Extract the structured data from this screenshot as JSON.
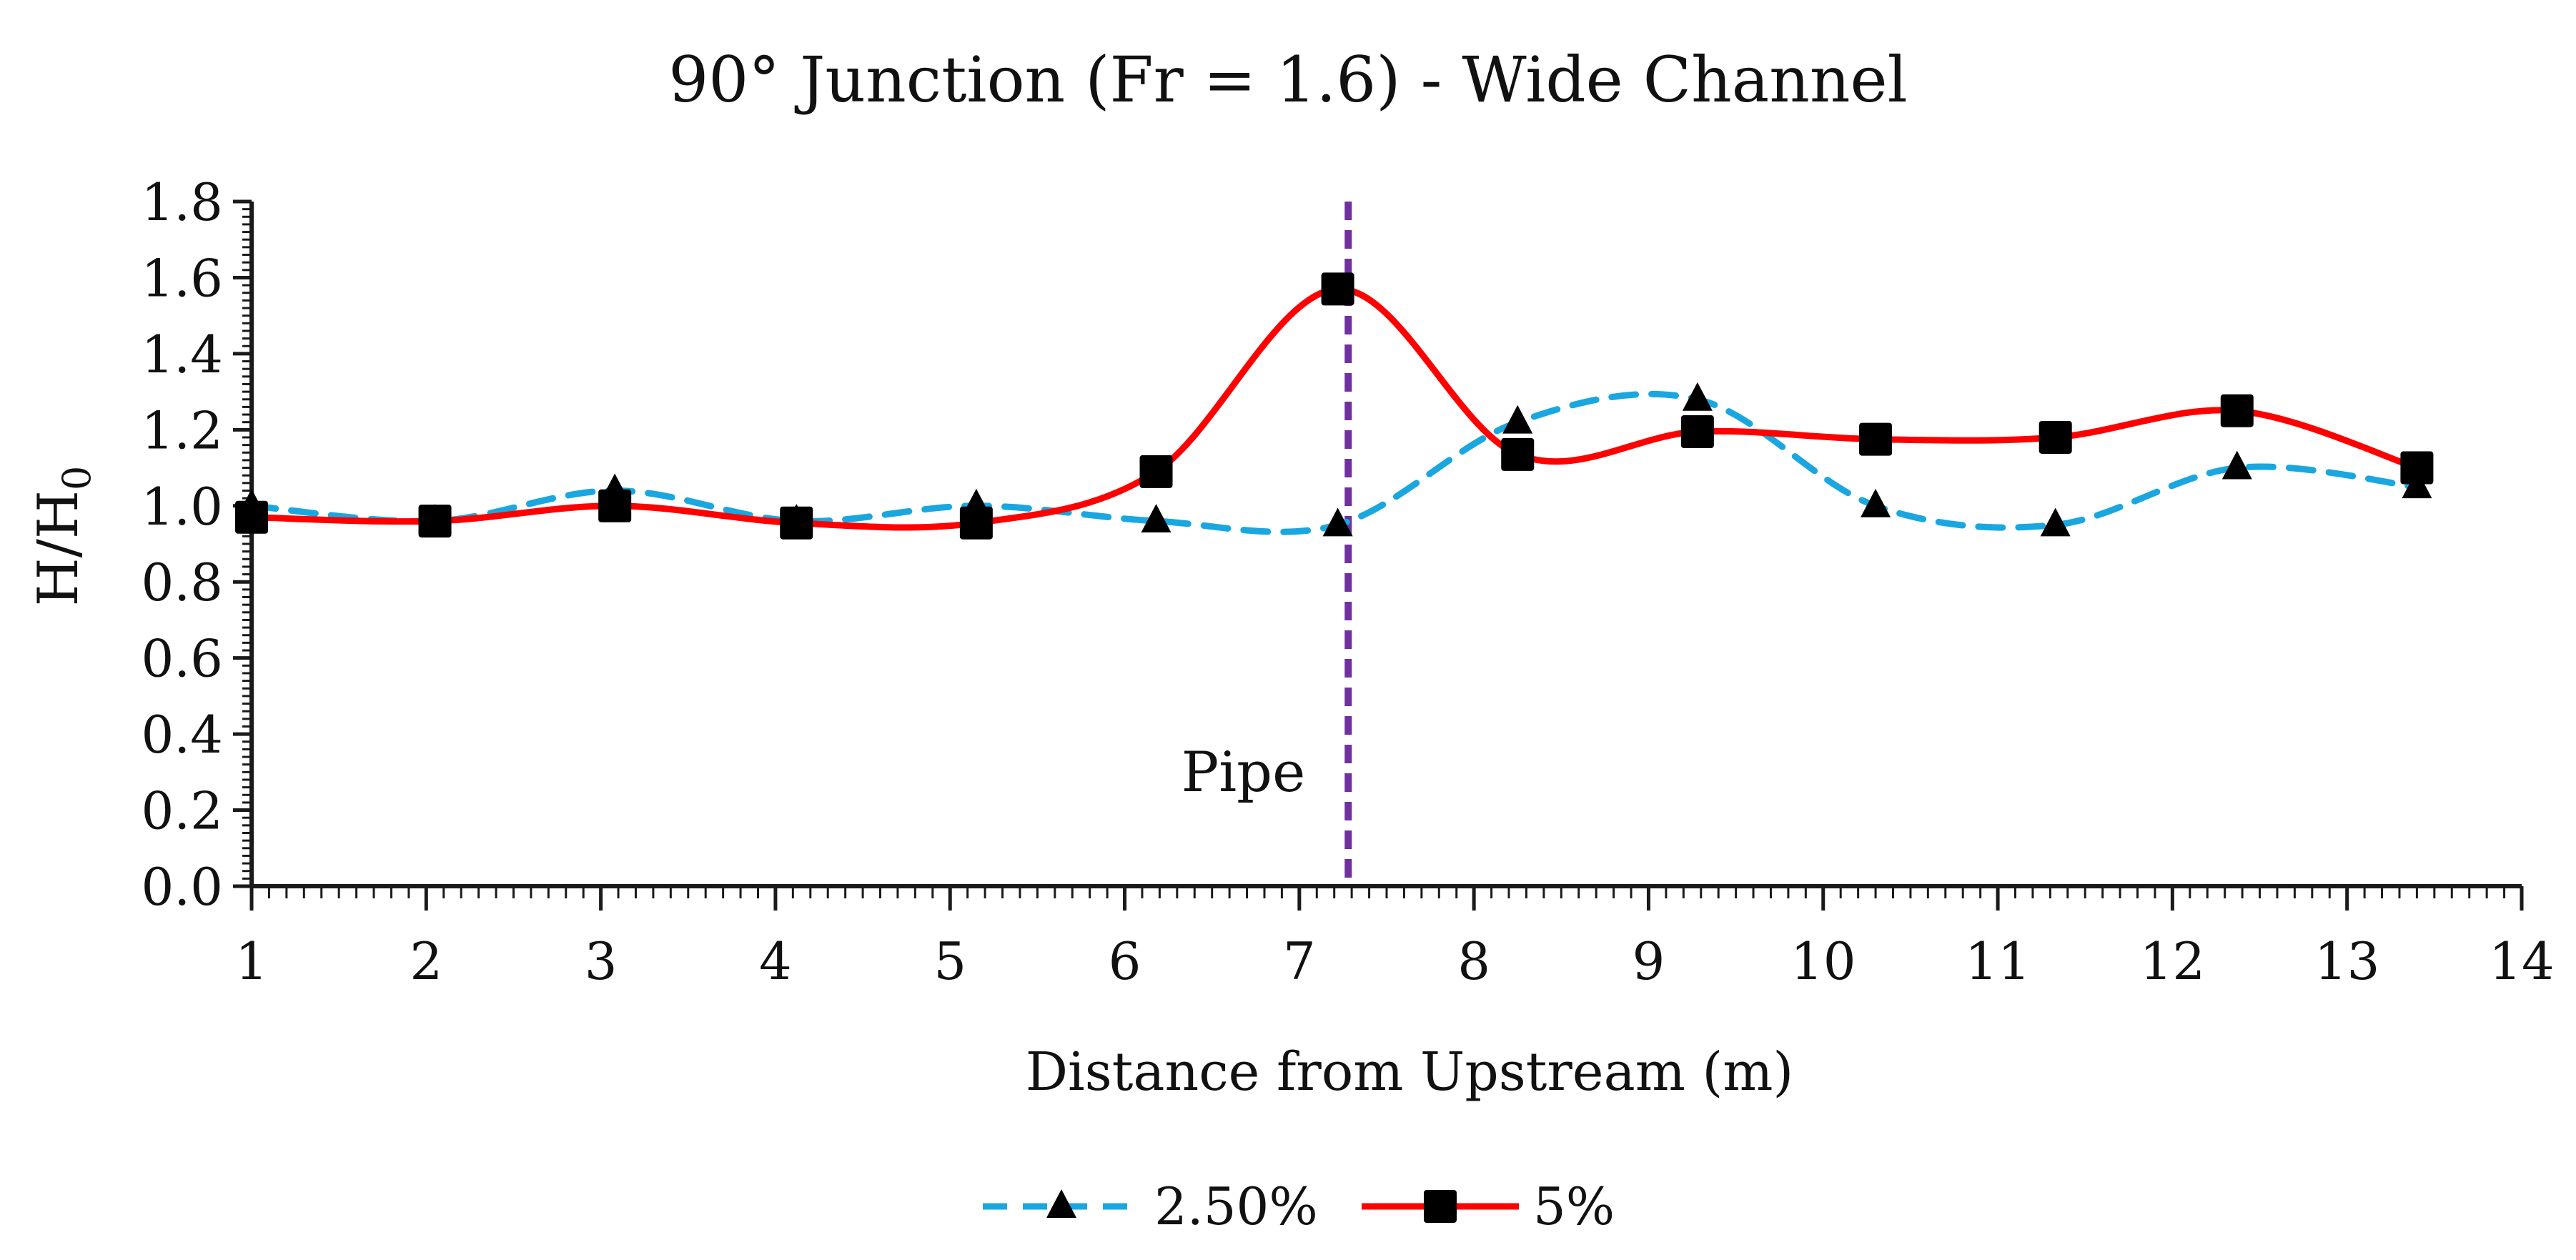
{
  "chart_data": {
    "type": "line",
    "title": "90° Junction (Fr = 1.6) - Wide Channel",
    "xlabel": "Distance from Upstream (m)",
    "ylabel": {
      "main": "H/H",
      "subscript": "0"
    },
    "xlim": [
      1,
      14
    ],
    "ylim": [
      0,
      1.8
    ],
    "x_ticks": [
      1,
      2,
      3,
      4,
      5,
      6,
      7,
      8,
      9,
      10,
      11,
      12,
      13,
      14
    ],
    "x_tick_labels": [
      "1",
      "2",
      "3",
      "4",
      "5",
      "6",
      "7",
      "8",
      "9",
      "10",
      "11",
      "12",
      "13",
      "14"
    ],
    "y_ticks": [
      0,
      0.2,
      0.4,
      0.6,
      0.8,
      1.0,
      1.2,
      1.4,
      1.6,
      1.8
    ],
    "y_tick_labels": [
      "0.0",
      "0.2",
      "0.4",
      "0.6",
      "0.8",
      "1.0",
      "1.2",
      "1.4",
      "1.6",
      "1.8"
    ],
    "legend_position": "bottom-center",
    "series": [
      {
        "name": "2.50%",
        "marker": "triangle",
        "line_style": "dashed",
        "color": "#1aa7e0",
        "x": [
          1.0,
          2.05,
          3.08,
          4.12,
          5.15,
          6.18,
          7.22,
          8.25,
          9.28,
          10.3,
          11.33,
          12.37,
          13.4
        ],
        "y": [
          1.0,
          0.96,
          1.04,
          0.96,
          1.0,
          0.96,
          0.95,
          1.22,
          1.28,
          1.0,
          0.95,
          1.1,
          1.05
        ]
      },
      {
        "name": "5%",
        "marker": "square",
        "line_style": "solid",
        "color": "#ff0000",
        "x": [
          1.0,
          2.05,
          3.08,
          4.12,
          5.15,
          6.18,
          7.22,
          8.25,
          9.28,
          10.3,
          11.33,
          12.37,
          13.4
        ],
        "y": [
          0.97,
          0.96,
          1.0,
          0.955,
          0.955,
          1.09,
          1.57,
          1.135,
          1.195,
          1.175,
          1.18,
          1.25,
          1.1
        ]
      }
    ],
    "annotations": [
      {
        "type": "vline",
        "x": 7.28,
        "label": "Pipe",
        "color": "#7030a0",
        "line_style": "dashed"
      }
    ]
  }
}
